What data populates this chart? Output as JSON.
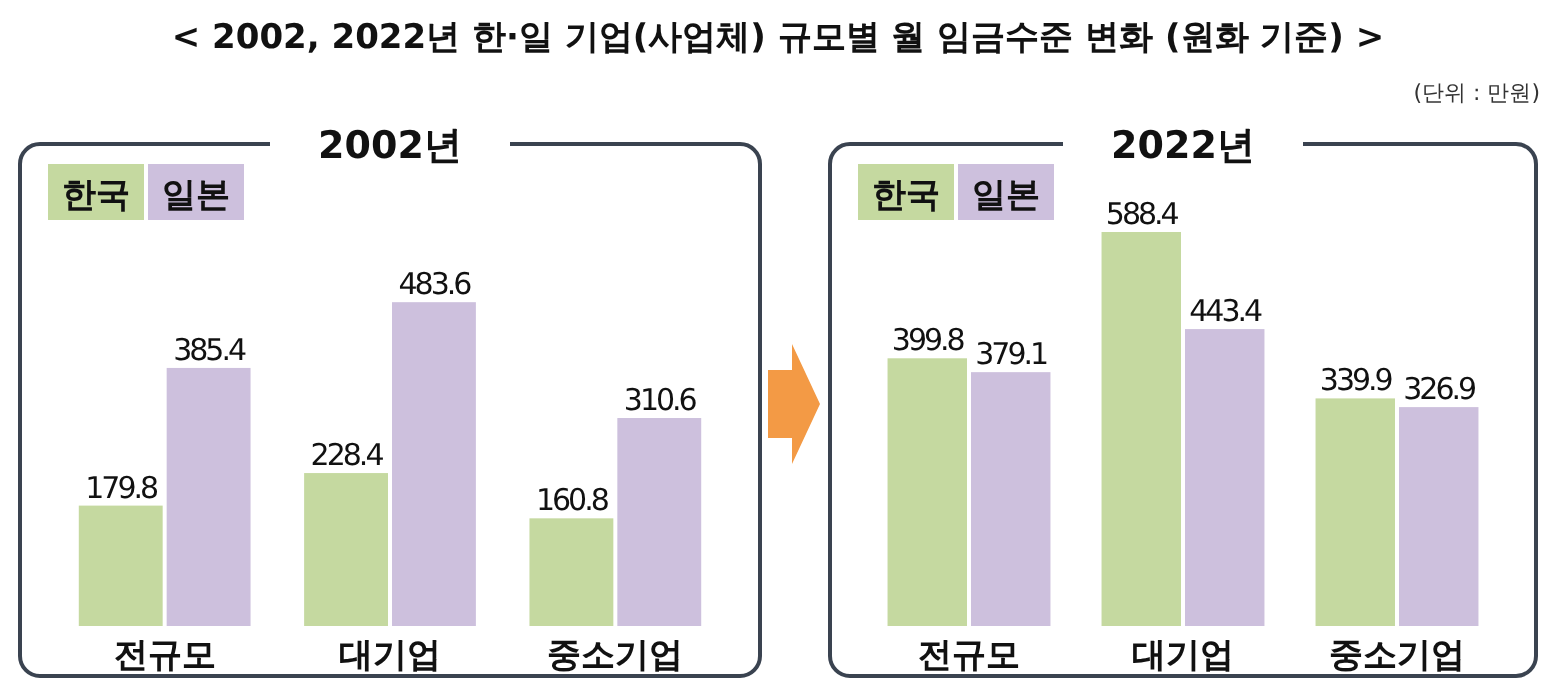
{
  "chart_data": [
    {
      "type": "bar",
      "title": "2002년",
      "annotations": [
        "< 2002, 2022년 한·일 기업(사업체) 규모별 월 임금수준 변화 (원화 기준) >",
        "(단위 : 만원)"
      ],
      "categories": [
        "전규모",
        "대기업",
        "중소기업"
      ],
      "legend": "top left",
      "data_labels": true,
      "series": [
        {
          "name": "한국",
          "color": "#c5d9a0",
          "values": [
            179.8,
            228.4,
            160.8
          ]
        },
        {
          "name": "일본",
          "color": "#cdc0dd",
          "values": [
            385.4,
            483.6,
            310.6
          ]
        }
      ]
    },
    {
      "type": "bar",
      "title": "2022년",
      "categories": [
        "전규모",
        "대기업",
        "중소기업"
      ],
      "legend": "top left",
      "data_labels": true,
      "series": [
        {
          "name": "한국",
          "color": "#c5d9a0",
          "values": [
            399.8,
            588.4,
            339.9
          ]
        },
        {
          "name": "일본",
          "color": "#cdc0dd",
          "values": [
            379.1,
            443.4,
            326.9
          ]
        }
      ]
    }
  ]
}
